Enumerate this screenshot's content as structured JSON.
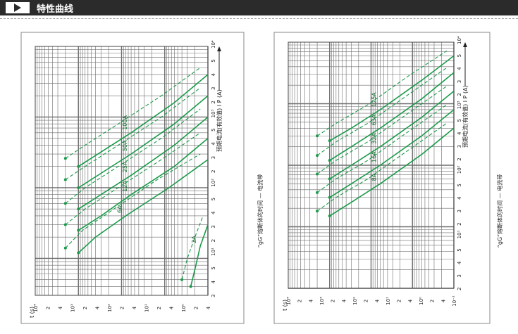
{
  "header": {
    "title": "特性曲线"
  },
  "colors": {
    "curve": "#1a9a4a",
    "grid": "#6d6d6d",
    "header_bg": "#2b2b2b"
  },
  "chart_data": [
    {
      "type": "line",
      "x_scale": "log",
      "y_scale": "log",
      "xlim": [
        3,
        10000
      ],
      "ylim": [
        1,
        10000
      ],
      "xlabel": "预期电流(有效值) I P (A)",
      "ylabel": "t (s)",
      "caption": "“gG”熔断体的时间 — 电流带",
      "grid": true,
      "x_axis_labels": [
        "3",
        "4",
        "5",
        "10¹",
        "2",
        "3",
        "4",
        "5",
        "10²",
        "2",
        "3",
        "4",
        "5",
        "10³",
        "2",
        "3",
        "4",
        "5",
        "10⁴"
      ],
      "y_axis_labels": [
        "4",
        "2",
        "10⁰",
        "4",
        "2",
        "10¹",
        "4",
        "2",
        "10²",
        "4",
        "2",
        "10³",
        "4",
        "2",
        "10⁴"
      ],
      "series": [
        {
          "name": "2A",
          "lower": [
            [
              4,
              2.5
            ],
            [
              7,
              2
            ],
            [
              15,
              1.5
            ],
            [
              30,
              1
            ]
          ],
          "upper": [
            [
              5,
              4
            ],
            [
              10,
              3
            ],
            [
              20,
              2
            ],
            [
              40,
              1.3
            ]
          ]
        },
        {
          "name": "6A",
          "lower": [
            [
              12,
              1000
            ],
            [
              20,
              400
            ],
            [
              40,
              80
            ],
            [
              100,
              8
            ],
            [
              250,
              1
            ]
          ],
          "upper": [
            [
              14,
              2000
            ],
            [
              25,
              800
            ],
            [
              50,
              150
            ],
            [
              130,
              15
            ],
            [
              300,
              1.5
            ]
          ]
        },
        {
          "name": "12A",
          "lower": [
            [
              25,
              1000
            ],
            [
              40,
              300
            ],
            [
              80,
              60
            ],
            [
              200,
              6
            ],
            [
              500,
              1
            ]
          ],
          "upper": [
            [
              30,
              2000
            ],
            [
              50,
              700
            ],
            [
              100,
              120
            ],
            [
              250,
              12
            ],
            [
              600,
              1.5
            ]
          ]
        },
        {
          "name": "25A",
          "lower": [
            [
              50,
              1000
            ],
            [
              80,
              300
            ],
            [
              150,
              60
            ],
            [
              400,
              6
            ],
            [
              1000,
              1
            ]
          ],
          "upper": [
            [
              60,
              2000
            ],
            [
              100,
              700
            ],
            [
              200,
              120
            ],
            [
              500,
              12
            ],
            [
              1300,
              1.5
            ]
          ]
        },
        {
          "name": "50A",
          "lower": [
            [
              100,
              1000
            ],
            [
              160,
              300
            ],
            [
              300,
              60
            ],
            [
              800,
              6
            ],
            [
              2000,
              1
            ]
          ],
          "upper": [
            [
              130,
              2000
            ],
            [
              200,
              700
            ],
            [
              400,
              120
            ],
            [
              1000,
              12
            ],
            [
              2600,
              1.5
            ]
          ]
        },
        {
          "name": "100A",
          "lower": [
            [
              200,
              1000
            ],
            [
              320,
              300
            ],
            [
              600,
              60
            ],
            [
              1600,
              6
            ],
            [
              4000,
              1
            ]
          ],
          "upper": [
            [
              260,
              2000
            ],
            [
              400,
              700
            ],
            [
              800,
              120
            ],
            [
              2000,
              12
            ],
            [
              5000,
              1.5
            ]
          ]
        }
      ]
    },
    {
      "type": "line",
      "x_scale": "log",
      "y_scale": "log",
      "xlim": [
        1,
        10000
      ],
      "ylim": [
        1,
        10000
      ],
      "xlabel": "预期电流(有效值) I P (A)",
      "ylabel": "t (s)",
      "caption": "“gG”熔断体的时间 — 电流带",
      "grid": true,
      "x_axis_labels": [
        "2",
        "3",
        "4",
        "5",
        "10¹",
        "2",
        "3",
        "4",
        "5",
        "10²",
        "2",
        "3",
        "4",
        "5",
        "10³",
        "2",
        "3",
        "4",
        "5",
        "10⁴"
      ],
      "y_axis_labels": [
        "10⁻¹",
        "4",
        "2",
        "10⁰",
        "4",
        "2",
        "10¹",
        "4",
        "2",
        "10²",
        "4",
        "2",
        "10³",
        "4",
        "2",
        "10⁴"
      ],
      "series": [
        {
          "name": "8A",
          "lower": [
            [
              15,
              1000
            ],
            [
              25,
              300
            ],
            [
              50,
              60
            ],
            [
              150,
              6
            ],
            [
              400,
              1
            ]
          ],
          "upper": [
            [
              18,
              2000
            ],
            [
              30,
              700
            ],
            [
              60,
              120
            ],
            [
              180,
              12
            ],
            [
              480,
              1.5
            ]
          ]
        },
        {
          "name": "16A",
          "lower": [
            [
              30,
              1000
            ],
            [
              50,
              300
            ],
            [
              100,
              60
            ],
            [
              300,
              6
            ],
            [
              800,
              1
            ]
          ],
          "upper": [
            [
              36,
              2000
            ],
            [
              60,
              700
            ],
            [
              120,
              120
            ],
            [
              360,
              12
            ],
            [
              960,
              1.5
            ]
          ]
        },
        {
          "name": "32A",
          "lower": [
            [
              60,
              1000
            ],
            [
              100,
              300
            ],
            [
              200,
              60
            ],
            [
              600,
              6
            ],
            [
              1600,
              1
            ]
          ],
          "upper": [
            [
              72,
              2000
            ],
            [
              120,
              700
            ],
            [
              240,
              120
            ],
            [
              720,
              12
            ],
            [
              1920,
              1.5
            ]
          ]
        },
        {
          "name": "63A",
          "lower": [
            [
              120,
              1000
            ],
            [
              200,
              300
            ],
            [
              400,
              60
            ],
            [
              1200,
              6
            ],
            [
              3200,
              1
            ]
          ],
          "upper": [
            [
              144,
              2000
            ],
            [
              240,
              700
            ],
            [
              480,
              120
            ],
            [
              1440,
              12
            ],
            [
              3840,
              1.5
            ]
          ]
        },
        {
          "name": "125A",
          "lower": [
            [
              250,
              1000
            ],
            [
              400,
              300
            ],
            [
              800,
              60
            ],
            [
              2400,
              6
            ],
            [
              6000,
              1
            ]
          ],
          "upper": [
            [
              300,
              2000
            ],
            [
              480,
              700
            ],
            [
              960,
              120
            ],
            [
              2880,
              12
            ],
            [
              7200,
              1.5
            ]
          ]
        }
      ]
    }
  ]
}
